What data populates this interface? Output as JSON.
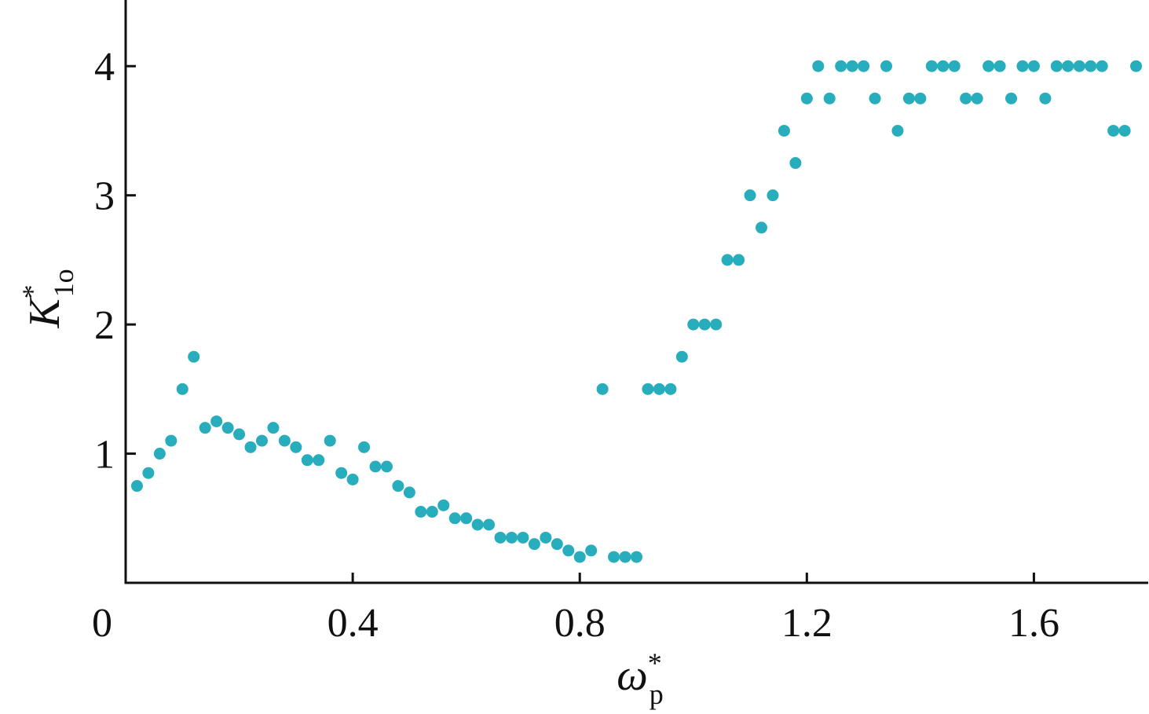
{
  "chart_data": {
    "type": "scatter",
    "xlabel": {
      "symbol": "ω",
      "sup": "*",
      "sub": "p"
    },
    "ylabel": {
      "symbol": "K",
      "sup": "*",
      "sub": "1o"
    },
    "color": "#27adbc",
    "xlim": [
      0,
      1.8
    ],
    "ylim": [
      0,
      4.5
    ],
    "xticks": [
      0,
      0.4,
      0.8,
      1.2,
      1.6
    ],
    "yticks": [
      1,
      2,
      3,
      4
    ],
    "grid": false,
    "x": [
      0.02,
      0.04,
      0.06,
      0.08,
      0.1,
      0.12,
      0.14,
      0.16,
      0.18,
      0.2,
      0.22,
      0.24,
      0.26,
      0.28,
      0.3,
      0.32,
      0.34,
      0.36,
      0.38,
      0.4,
      0.42,
      0.44,
      0.46,
      0.48,
      0.5,
      0.52,
      0.54,
      0.56,
      0.58,
      0.6,
      0.62,
      0.64,
      0.66,
      0.68,
      0.7,
      0.72,
      0.74,
      0.76,
      0.78,
      0.8,
      0.82,
      0.84,
      0.86,
      0.88,
      0.9,
      0.92,
      0.94,
      0.96,
      0.98,
      1.0,
      1.02,
      1.04,
      1.06,
      1.08,
      1.1,
      1.12,
      1.14,
      1.16,
      1.18,
      1.2,
      1.22,
      1.24,
      1.26,
      1.28,
      1.3,
      1.32,
      1.34,
      1.36,
      1.38,
      1.4,
      1.42,
      1.44,
      1.46,
      1.48,
      1.5,
      1.52,
      1.54,
      1.56,
      1.58,
      1.6,
      1.62,
      1.64,
      1.66,
      1.68,
      1.7,
      1.72,
      1.74,
      1.76,
      1.78
    ],
    "values": [
      0.75,
      0.85,
      1.0,
      1.1,
      1.5,
      1.75,
      1.2,
      1.25,
      1.2,
      1.15,
      1.05,
      1.1,
      1.2,
      1.1,
      1.05,
      0.95,
      0.95,
      1.1,
      0.85,
      0.8,
      1.05,
      0.9,
      0.9,
      0.75,
      0.7,
      0.55,
      0.55,
      0.6,
      0.5,
      0.5,
      0.45,
      0.45,
      0.35,
      0.35,
      0.35,
      0.3,
      0.35,
      0.3,
      0.25,
      0.2,
      0.25,
      1.5,
      0.2,
      0.2,
      0.2,
      1.5,
      1.5,
      1.5,
      1.75,
      2.0,
      2.0,
      2.0,
      2.5,
      2.5,
      3.0,
      2.75,
      3.0,
      3.5,
      3.25,
      3.75,
      4,
      3.75,
      4,
      4,
      4,
      3.75,
      4,
      3.5,
      3.75,
      3.75,
      4,
      4,
      4,
      3.75,
      3.75,
      4,
      4,
      3.75,
      4,
      4,
      3.75,
      4,
      4,
      4,
      4,
      4,
      3.5,
      3.5,
      4
    ]
  }
}
